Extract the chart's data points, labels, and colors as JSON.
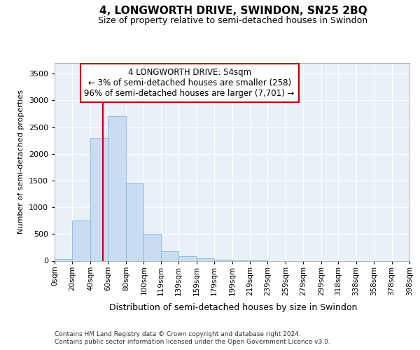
{
  "title": "4, LONGWORTH DRIVE, SWINDON, SN25 2BQ",
  "subtitle": "Size of property relative to semi-detached houses in Swindon",
  "xlabel": "Distribution of semi-detached houses by size in Swindon",
  "ylabel": "Number of semi-detached properties",
  "footnote1": "Contains HM Land Registry data © Crown copyright and database right 2024.",
  "footnote2": "Contains public sector information licensed under the Open Government Licence v3.0.",
  "bar_color": "#c9ddf2",
  "bar_edge_color": "#8ab4d8",
  "annotation_line1": "4 LONGWORTH DRIVE: 54sqm",
  "annotation_line2": "← 3% of semi-detached houses are smaller (258)",
  "annotation_line3": "96% of semi-detached houses are larger (7,701) →",
  "vline_x": 54,
  "vline_color": "#c00000",
  "bins": [
    0,
    20,
    40,
    60,
    80,
    100,
    119,
    139,
    159,
    179,
    199,
    219,
    239,
    259,
    279,
    299,
    318,
    338,
    358,
    378,
    398
  ],
  "bin_labels": [
    "0sqm",
    "20sqm",
    "40sqm",
    "60sqm",
    "80sqm",
    "100sqm",
    "119sqm",
    "139sqm",
    "159sqm",
    "179sqm",
    "199sqm",
    "219sqm",
    "239sqm",
    "259sqm",
    "279sqm",
    "299sqm",
    "318sqm",
    "338sqm",
    "358sqm",
    "378sqm",
    "398sqm"
  ],
  "bar_heights": [
    30,
    750,
    2300,
    2700,
    1450,
    500,
    175,
    90,
    50,
    25,
    5,
    2,
    0,
    0,
    0,
    0,
    0,
    0,
    0,
    0
  ],
  "ylim": [
    0,
    3700
  ],
  "yticks": [
    0,
    500,
    1000,
    1500,
    2000,
    2500,
    3000,
    3500
  ],
  "bg_color": "#e8f0f8",
  "grid_color": "#ffffff",
  "fig_width": 6.0,
  "fig_height": 5.0,
  "dpi": 100
}
